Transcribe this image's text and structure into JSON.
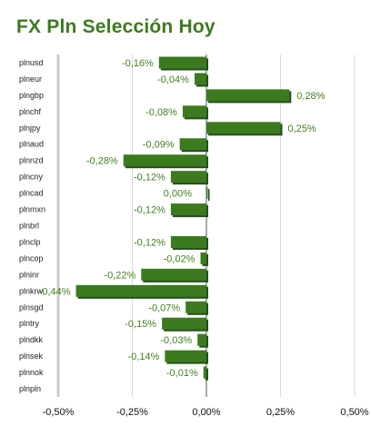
{
  "title": "FX Pln Selección Hoy",
  "colors": {
    "bar": "#3c7a1f",
    "bar_dark": "#23501a",
    "label": "#3f7f1f",
    "title": "#3c7a1f"
  },
  "chart_data": {
    "type": "bar",
    "orientation": "horizontal",
    "title": "FX Pln Selección Hoy",
    "xlim": [
      -0.5,
      0.5
    ],
    "xticks": [
      "-0,50%",
      "-0,25%",
      "0,00%",
      "0,25%",
      "0,50%"
    ],
    "xtick_values": [
      -0.5,
      -0.25,
      0,
      0.25,
      0.5
    ],
    "grid": true,
    "categories": [
      "plnusd",
      "plneur",
      "plngbp",
      "plnchf",
      "plnjpy",
      "plnaud",
      "plnnzd",
      "plncny",
      "plncad",
      "plnmxn",
      "plnbrl",
      "plnclp",
      "plncop",
      "plninr",
      "plnkrw",
      "plnsgd",
      "plntry",
      "plndkk",
      "plnsek",
      "plnnok",
      "plnpln"
    ],
    "values": [
      -0.16,
      -0.04,
      0.28,
      -0.08,
      0.25,
      -0.09,
      -0.28,
      -0.12,
      0.0,
      -0.12,
      null,
      -0.12,
      -0.02,
      -0.22,
      -0.44,
      -0.07,
      -0.15,
      -0.03,
      -0.14,
      -0.01,
      null
    ],
    "value_labels": [
      "-0,16%",
      "-0,04%",
      "0,28%",
      "-0,08%",
      "0,25%",
      "-0,09%",
      "-0,28%",
      "-0,12%",
      "0,00%",
      "-0,12%",
      "",
      "-0,12%",
      "-0,02%",
      "-0,22%",
      "-0,44%",
      "-0,07%",
      "-0,15%",
      "-0,03%",
      "-0,14%",
      "-0,01%",
      ""
    ]
  }
}
